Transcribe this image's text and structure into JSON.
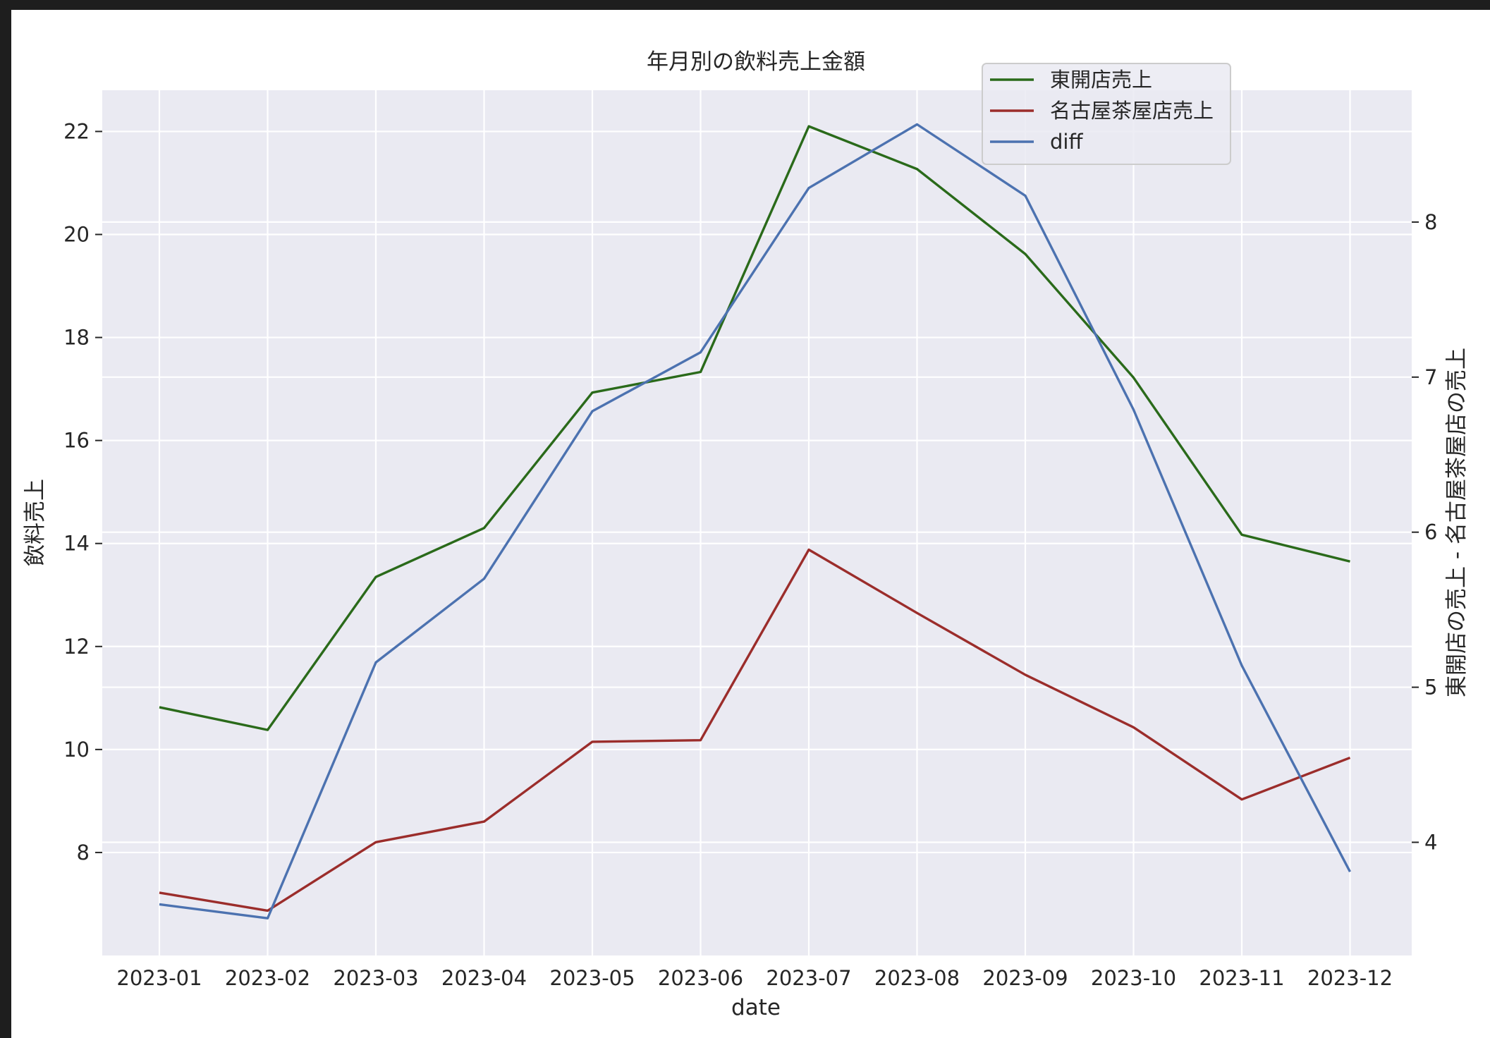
{
  "chart_data": {
    "type": "line",
    "title": "年月別の飲料売上金額",
    "xlabel": "date",
    "ylabel": "飲料売上",
    "ylabel_right": "東開店の売上 - 名古屋茶屋店の売上",
    "x": [
      "2023-01",
      "2023-02",
      "2023-03",
      "2023-04",
      "2023-05",
      "2023-06",
      "2023-07",
      "2023-08",
      "2023-09",
      "2023-10",
      "2023-11",
      "2023-12"
    ],
    "left_axis": {
      "ylim": [
        6.0,
        22.8
      ],
      "ticks": [
        8,
        10,
        12,
        14,
        16,
        18,
        20,
        22
      ],
      "series": [
        {
          "name": "東開店売上",
          "color": "#2a6a1a",
          "values": [
            10.82,
            10.38,
            13.35,
            14.3,
            16.93,
            17.33,
            22.1,
            21.27,
            19.62,
            17.22,
            14.17,
            13.65
          ]
        },
        {
          "name": "名古屋茶屋店売上",
          "color": "#9b2d2b",
          "values": [
            7.22,
            6.87,
            8.2,
            8.6,
            10.15,
            10.18,
            13.88,
            12.65,
            11.45,
            10.43,
            9.03,
            9.84
          ]
        }
      ]
    },
    "right_axis": {
      "ylim": [
        3.27,
        8.85
      ],
      "ticks": [
        4,
        5,
        6,
        7,
        8
      ],
      "series": [
        {
          "name": "diff",
          "color": "#4c72b0",
          "values": [
            3.6,
            3.51,
            5.16,
            5.7,
            6.78,
            7.16,
            8.22,
            8.63,
            8.17,
            6.79,
            5.14,
            3.81
          ]
        }
      ]
    },
    "grid": true,
    "legend_position": "top-right",
    "legend": [
      "東開店売上",
      "名古屋茶屋店売上",
      "diff"
    ]
  }
}
